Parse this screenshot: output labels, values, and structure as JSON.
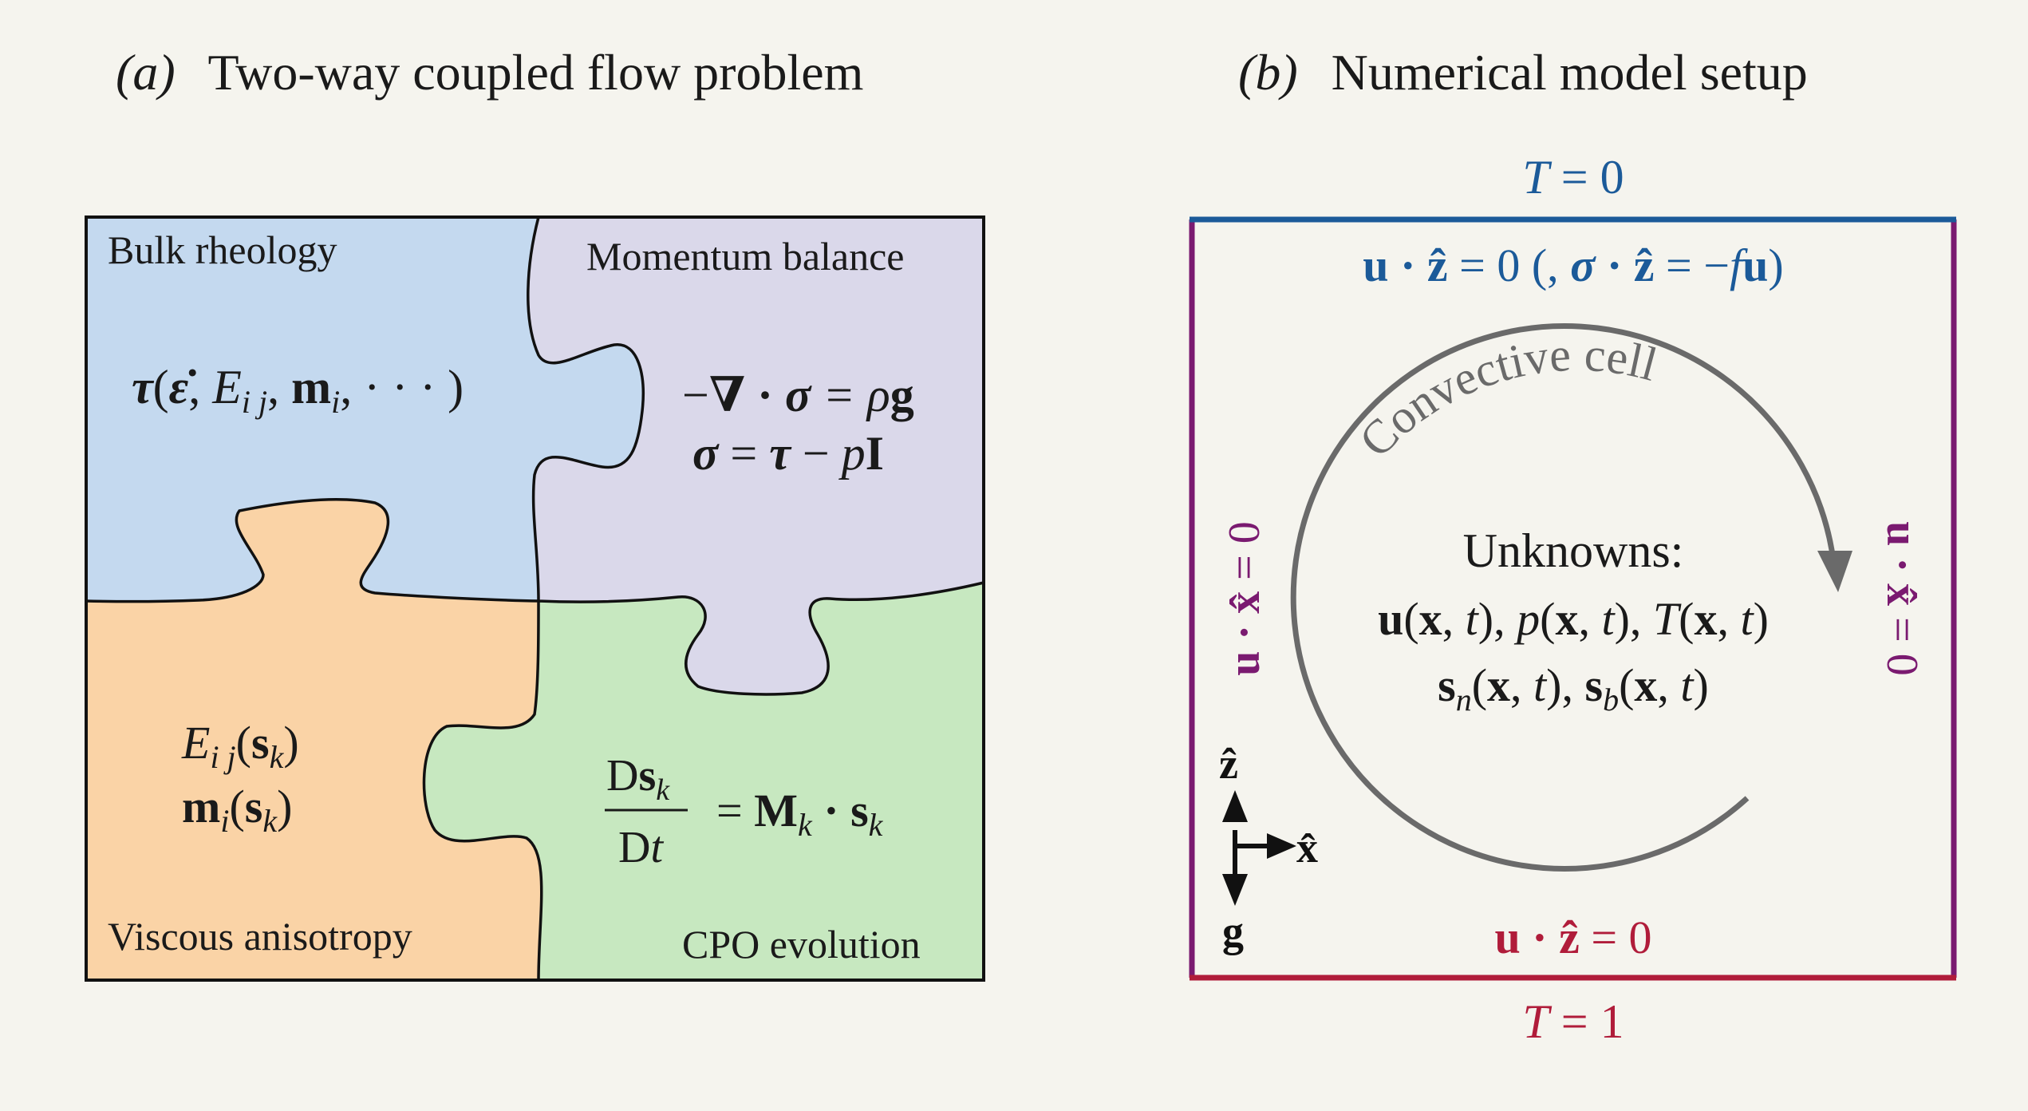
{
  "panel_a": {
    "label": "(a)",
    "title": "Two-way coupled flow problem",
    "pieces": {
      "bulk_rheology": {
        "label": "Bulk rheology",
        "eq_tau": "τ",
        "eq_open": "(",
        "eq_epsdot": "ε̇",
        "eq_E": "E",
        "eq_ij": "i j",
        "eq_m": "m",
        "eq_i": "i",
        "eq_rest": ", · · · )",
        "color": "#c4d9ef"
      },
      "momentum_balance": {
        "label": "Momentum balance",
        "eq1_minus": "−",
        "eq1_nabla": "∇",
        "eq1_dot": " · ",
        "eq1_sigma": "σ",
        "eq1_eq": " = ρ",
        "eq1_g": "g",
        "eq2_sigma": "σ",
        "eq2_eq": " = ",
        "eq2_tau": "τ",
        "eq2_minus": " − ",
        "eq2_p": "p",
        "eq2_I": "I",
        "color": "#dad8ea"
      },
      "viscous_anisotropy": {
        "label": "Viscous anisotropy",
        "eq1_E": "E",
        "eq1_ij": "i j",
        "eq1_open": "(",
        "eq1_s": "s",
        "eq1_k": "k",
        "eq1_close": ")",
        "eq2_m": "m",
        "eq2_i": "i",
        "eq2_open": "(",
        "eq2_s": "s",
        "eq2_k": "k",
        "eq2_close": ")",
        "color": "#fad3a6"
      },
      "cpo_evolution": {
        "label": "CPO evolution",
        "num_D": "D",
        "num_s": "s",
        "num_k": "k",
        "den_D": "D",
        "den_t": "t",
        "eq": "= ",
        "M": "M",
        "M_k": "k",
        "dot": " · ",
        "s": "s",
        "s_k": "k",
        "color": "#c7e8c0"
      }
    }
  },
  "panel_b": {
    "label": "(b)",
    "title": "Numerical model setup",
    "top_T_T": "T",
    "top_T_rest": " = 0",
    "top_bc_u": "u",
    "top_bc_dot": " · ",
    "top_bc_z": "ẑ",
    "top_bc_mid": " = 0 (, ",
    "top_bc_sigma": "σ",
    "top_bc_dot2": " · ",
    "top_bc_z2": "ẑ",
    "top_bc_eq2": " = −",
    "top_bc_f": "f",
    "top_bc_u2": "u",
    "top_bc_close": ")",
    "side_bc_u": "u",
    "side_bc_dot": " · ",
    "side_bc_x": "x̂",
    "side_bc_rest": " = 0",
    "bottom_bc_u": "u",
    "bottom_bc_dot": " · ",
    "bottom_bc_z": "ẑ",
    "bottom_bc_rest": " = 0",
    "bottom_T_T": "T",
    "bottom_T_rest": " = 1",
    "cell_label": "Convective cell",
    "unknowns_title": "Unknowns:",
    "unk1_u": "u",
    "unk1_a": "(",
    "unk1_x1": "x",
    "unk1_b": ", ",
    "unk1_t1": "t",
    "unk1_c": "), ",
    "unk1_p": "p",
    "unk1_d": "(",
    "unk1_x2": "x",
    "unk1_e": ", ",
    "unk1_t2": "t",
    "unk1_f": "), ",
    "unk1_T": "T",
    "unk1_g": "(",
    "unk1_x3": "x",
    "unk1_h": ", ",
    "unk1_t3": "t",
    "unk1_i": ")",
    "unk2_s": "s",
    "unk2_n": "n",
    "unk2_a": "(",
    "unk2_x1": "x",
    "unk2_b": ", ",
    "unk2_t1": "t",
    "unk2_c": "), ",
    "unk2_s2": "s",
    "unk2_bsub": "b",
    "unk2_d": "(",
    "unk2_x2": "x",
    "unk2_e": ", ",
    "unk2_t2": "t",
    "unk2_f": ")",
    "axis_z": "ẑ",
    "axis_x": "x̂",
    "axis_g": "g",
    "colors": {
      "top": "#1b5a99",
      "sides": "#7a1a70",
      "bottom": "#b01c3a",
      "cell": "#6a6a6a",
      "ink": "#1a1a1a"
    }
  }
}
